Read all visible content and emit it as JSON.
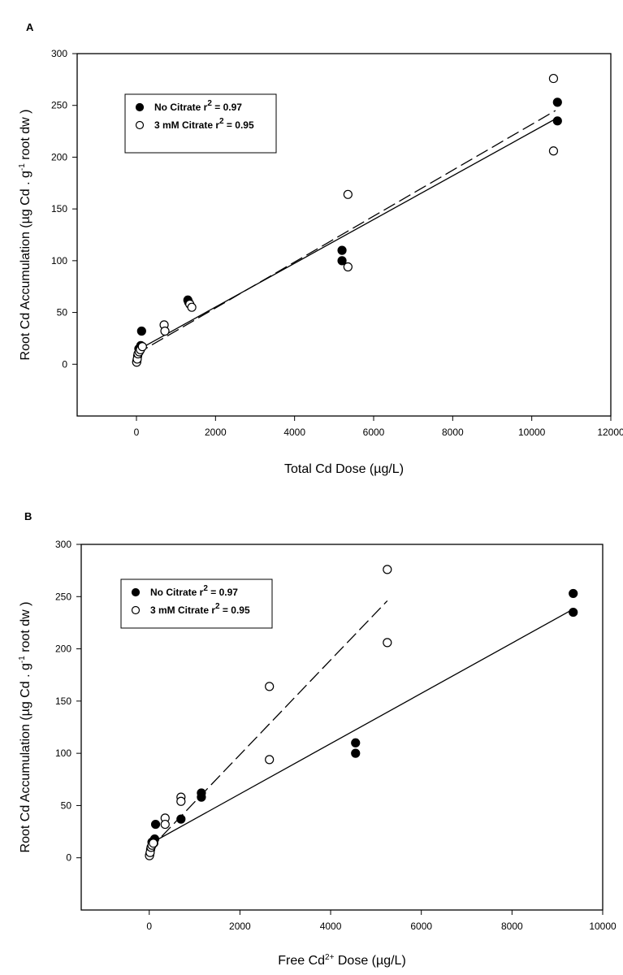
{
  "chart_data": [
    {
      "type": "scatter",
      "panel": "A",
      "xlabel": "Total Cd Dose (µg/L)",
      "ylabel": "Root Cd Accumulation (µg Cd . g⁻¹ root dw )",
      "xlim": [
        -1500,
        12000
      ],
      "ylim": [
        -50,
        300
      ],
      "xticks": [
        0,
        2000,
        4000,
        6000,
        8000,
        10000,
        12000
      ],
      "yticks": [
        0,
        50,
        100,
        150,
        200,
        250,
        300
      ],
      "grid": false,
      "legend_position": "top-left",
      "series": [
        {
          "name": "No Citrate r² = 0.97",
          "marker": "filled-circle",
          "line": "solid",
          "points": [
            [
              10,
              3
            ],
            [
              30,
              8
            ],
            [
              60,
              15
            ],
            [
              90,
              14
            ],
            [
              110,
              18
            ],
            [
              130,
              32
            ],
            [
              1300,
              62
            ],
            [
              1320,
              60
            ],
            [
              5200,
              110
            ],
            [
              5200,
              100
            ],
            [
              10650,
              253
            ],
            [
              10650,
              235
            ]
          ],
          "fit": [
            [
              0,
              13
            ],
            [
              10650,
              238
            ]
          ]
        },
        {
          "name": "3 mM Citrate r² = 0.95",
          "marker": "open-circle",
          "line": "dashed",
          "points": [
            [
              5,
              2
            ],
            [
              20,
              5
            ],
            [
              40,
              10
            ],
            [
              70,
              12
            ],
            [
              100,
              14
            ],
            [
              150,
              17
            ],
            [
              700,
              38
            ],
            [
              720,
              32
            ],
            [
              1350,
              58
            ],
            [
              1400,
              55
            ],
            [
              5350,
              164
            ],
            [
              5350,
              94
            ],
            [
              10550,
              276
            ],
            [
              10550,
              206
            ]
          ],
          "fit": [
            [
              0,
              10
            ],
            [
              10600,
              245
            ]
          ]
        }
      ]
    },
    {
      "type": "scatter",
      "panel": "B",
      "xlabel": "Free Cd²⁺ Dose (µg/L)",
      "ylabel": "Root Cd Accumulation (µg Cd . g⁻¹ root dw )",
      "xlim": [
        -1500,
        10000
      ],
      "ylim": [
        -50,
        300
      ],
      "xticks": [
        0,
        2000,
        4000,
        6000,
        8000,
        10000
      ],
      "yticks": [
        0,
        50,
        100,
        150,
        200,
        250,
        300
      ],
      "grid": false,
      "legend_position": "top-left",
      "series": [
        {
          "name": "No Citrate r² = 0.97",
          "marker": "filled-circle",
          "line": "solid",
          "points": [
            [
              10,
              3
            ],
            [
              30,
              8
            ],
            [
              60,
              15
            ],
            [
              100,
              14
            ],
            [
              120,
              18
            ],
            [
              140,
              32
            ],
            [
              700,
              37
            ],
            [
              1150,
              62
            ],
            [
              1150,
              58
            ],
            [
              4550,
              110
            ],
            [
              4550,
              100
            ],
            [
              9350,
              253
            ],
            [
              9350,
              235
            ]
          ],
          "fit": [
            [
              0,
              13
            ],
            [
              9350,
              238
            ]
          ]
        },
        {
          "name": "3 mM Citrate r² = 0.95",
          "marker": "open-circle",
          "line": "dashed",
          "points": [
            [
              5,
              2
            ],
            [
              20,
              5
            ],
            [
              40,
              10
            ],
            [
              60,
              12
            ],
            [
              90,
              14
            ],
            [
              350,
              38
            ],
            [
              350,
              32
            ],
            [
              700,
              58
            ],
            [
              700,
              54
            ],
            [
              2650,
              164
            ],
            [
              2650,
              94
            ],
            [
              5250,
              276
            ],
            [
              5250,
              206
            ]
          ],
          "fit": [
            [
              0,
              8
            ],
            [
              5250,
              246
            ]
          ]
        }
      ]
    }
  ]
}
